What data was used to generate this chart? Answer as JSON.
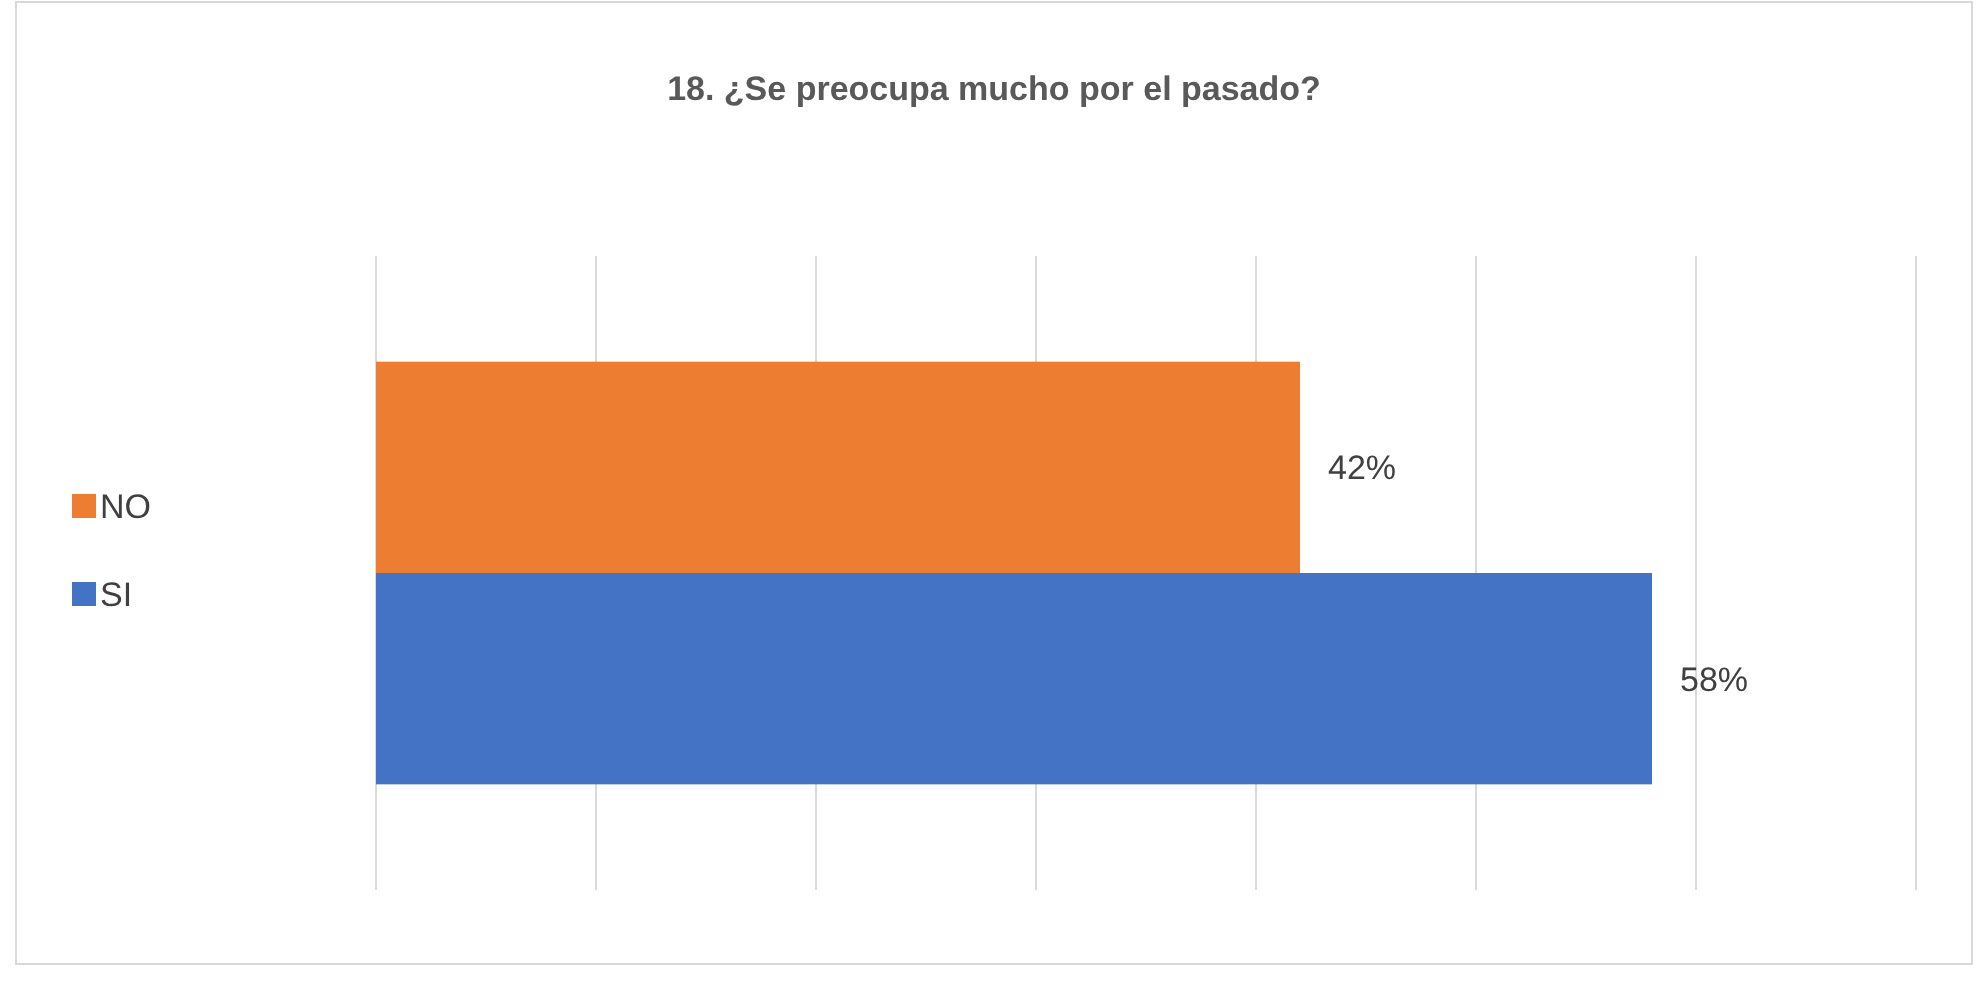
{
  "chart_data": {
    "type": "bar",
    "orientation": "horizontal",
    "title": "18. ¿Se preocupa mucho por el pasado?",
    "categories": [
      null
    ],
    "series": [
      {
        "name": "NO",
        "color": "#ed7d31",
        "values": [
          42
        ],
        "value_labels": [
          "42%"
        ]
      },
      {
        "name": "SI",
        "color": "#4472c4",
        "values": [
          58
        ],
        "value_labels": [
          "58%"
        ]
      }
    ],
    "xlim": [
      0,
      70
    ],
    "xticks": [
      {
        "value": 0,
        "label": null
      },
      {
        "value": 10,
        "label": null
      },
      {
        "value": 20,
        "label": null
      },
      {
        "value": 30,
        "label": null
      },
      {
        "value": 40,
        "label": null
      },
      {
        "value": 50,
        "label": null
      },
      {
        "value": 60,
        "label": null
      },
      {
        "value": 70,
        "label": null
      }
    ],
    "grid": "x",
    "legend": "left"
  }
}
